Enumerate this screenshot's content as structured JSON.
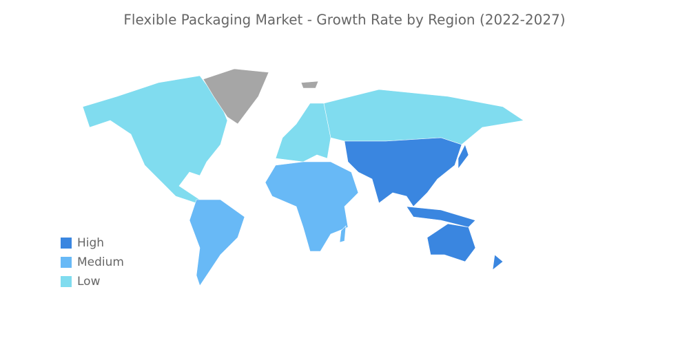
{
  "title": "Flexible Packaging Market - Growth Rate by Region (2022-2027)",
  "legend": [
    {
      "label": "High",
      "color": "#3a86e0"
    },
    {
      "label": "Medium",
      "color": "#68b9f6"
    },
    {
      "label": "Low",
      "color": "#80dcef"
    }
  ]
}
